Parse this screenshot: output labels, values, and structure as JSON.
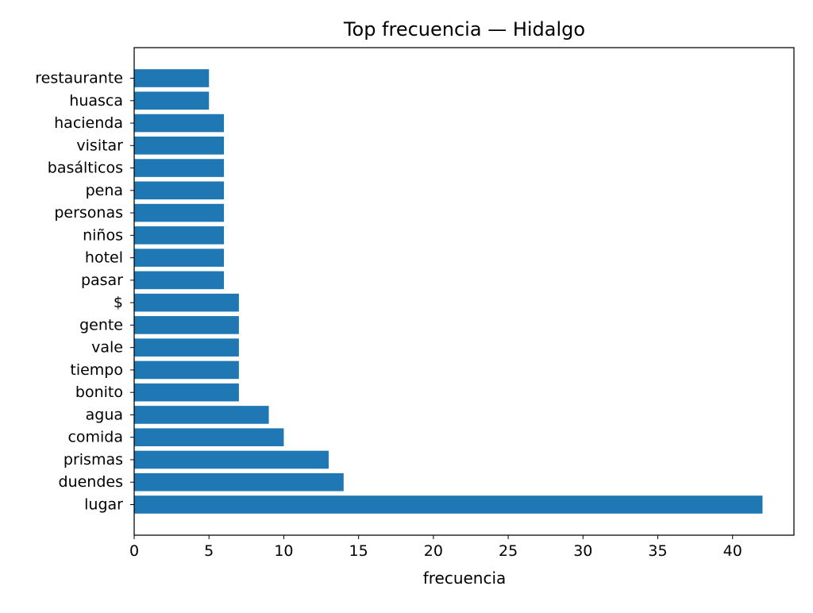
{
  "chart_data": {
    "type": "bar",
    "orientation": "horizontal",
    "title": "Top frecuencia — Hidalgo",
    "xlabel": "frecuencia",
    "ylabel": "",
    "xlim": [
      0,
      44.1
    ],
    "xticks": [
      0,
      5,
      10,
      15,
      20,
      25,
      30,
      35,
      40
    ],
    "grid": false,
    "bar_color": "#1f77b4",
    "categories": [
      "lugar",
      "duendes",
      "prismas",
      "comida",
      "agua",
      "bonito",
      "tiempo",
      "vale",
      "gente",
      "$",
      "pasar",
      "hotel",
      "niños",
      "personas",
      "pena",
      "basálticos",
      "visitar",
      "hacienda",
      "huasca",
      "restaurante"
    ],
    "values": [
      42,
      14,
      13,
      10,
      9,
      7,
      7,
      7,
      7,
      7,
      6,
      6,
      6,
      6,
      6,
      6,
      6,
      6,
      5,
      5
    ]
  }
}
